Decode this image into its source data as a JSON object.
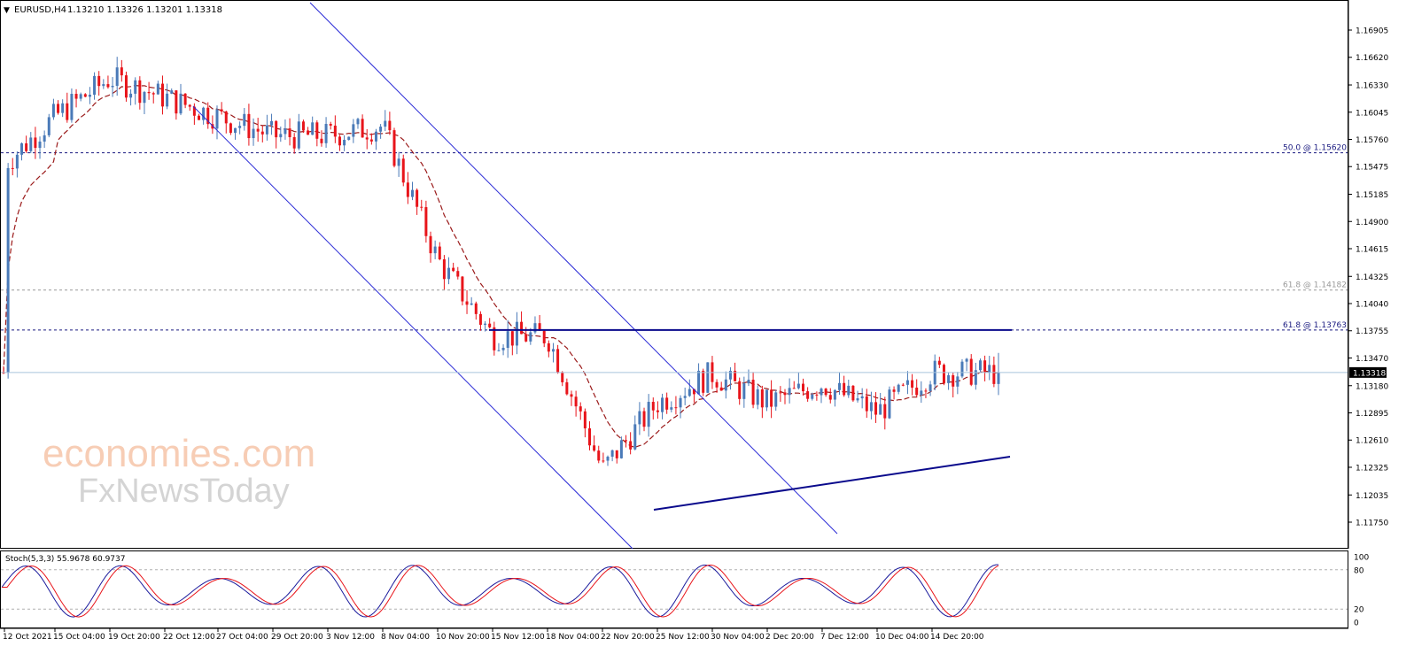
{
  "header": {
    "symbol": "EURUSD,H4",
    "ohlc": "1.13210 1.13326 1.13201 1.13318",
    "triangle_glyph": "▼"
  },
  "watermark": {
    "line1": "economies.com",
    "line2": "FxNewsToday"
  },
  "colors": {
    "bull": "#4a7ab8",
    "bear": "#e8141a",
    "ma": "#9b1b1b",
    "channel": "#2b2bd6",
    "support": "#0a0a8c",
    "fib": "#1a1a80",
    "fib_minor": "#999999",
    "stoch_main": "#1a1a9c",
    "stoch_signal": "#e8141a",
    "price_label_bg": "#000000"
  },
  "price_axis": {
    "ticks": [
      "1.16905",
      "1.16620",
      "1.16330",
      "1.16045",
      "1.15760",
      "1.15475",
      "1.15185",
      "1.14900",
      "1.14615",
      "1.14325",
      "1.14040",
      "1.13755",
      "1.13470",
      "1.13180",
      "1.12895",
      "1.12610",
      "1.12325",
      "1.12035",
      "1.11750"
    ],
    "current_price": "1.13318"
  },
  "time_axis": {
    "labels": [
      "12 Oct 2021",
      "15 Oct 04:00",
      "19 Oct 20:00",
      "22 Oct 12:00",
      "27 Oct 04:00",
      "29 Oct 20:00",
      "3 Nov 12:00",
      "8 Nov 04:00",
      "10 Nov 20:00",
      "15 Nov 12:00",
      "18 Nov 04:00",
      "22 Nov 20:00",
      "25 Nov 12:00",
      "30 Nov 04:00",
      "2 Dec 20:00",
      "7 Dec 12:00",
      "10 Dec 04:00",
      "14 Dec 20:00"
    ]
  },
  "fib_levels": [
    {
      "label": "50.0 @ 1.15620",
      "price": 1.1562,
      "style": "major"
    },
    {
      "label": "61.8 @ 1.14182",
      "price": 1.14182,
      "style": "minor"
    },
    {
      "label": "61.8 @ 1.13763",
      "price": 1.13763,
      "style": "major"
    }
  ],
  "stochastic": {
    "label": "Stoch(5,3,3) 55.9678 60.9737",
    "axis_labels": [
      "100",
      "80",
      "20",
      "0"
    ]
  },
  "chart_data": {
    "type": "candlestick",
    "symbol": "EURUSD",
    "timeframe": "H4",
    "ylim": [
      1.1175,
      1.1705
    ],
    "current_close": 1.13318,
    "close_path": [
      {
        "x": "12 Oct 2021",
        "y": 1.155
      },
      {
        "x": "15 Oct 04:00",
        "y": 1.16
      },
      {
        "x": "19 Oct 20:00",
        "y": 1.164
      },
      {
        "x": "22 Oct 12:00",
        "y": 1.162
      },
      {
        "x": "27 Oct 04:00",
        "y": 1.16
      },
      {
        "x": "29 Oct 20:00",
        "y": 1.158
      },
      {
        "x": "3 Nov 12:00",
        "y": 1.158
      },
      {
        "x": "8 Nov 04:00",
        "y": 1.159
      },
      {
        "x": "10 Nov 20:00",
        "y": 1.145
      },
      {
        "x": "15 Nov 12:00",
        "y": 1.137
      },
      {
        "x": "18 Nov 04:00",
        "y": 1.137
      },
      {
        "x": "22 Nov 20:00",
        "y": 1.123
      },
      {
        "x": "25 Nov 12:00",
        "y": 1.13
      },
      {
        "x": "30 Nov 04:00",
        "y": 1.133
      },
      {
        "x": "2 Dec 20:00",
        "y": 1.13
      },
      {
        "x": "7 Dec 12:00",
        "y": 1.132
      },
      {
        "x": "10 Dec 04:00",
        "y": 1.129
      },
      {
        "x": "14 Dec 20:00",
        "y": 1.1332
      }
    ],
    "horizontal_resistance": 1.13763,
    "support_trendline": [
      {
        "x": "23 Nov",
        "y": 1.119
      },
      {
        "x": "16 Dec",
        "y": 1.1265
      }
    ],
    "channel_upper": [
      {
        "x": "27 Oct",
        "y": 1.1715
      },
      {
        "x": "6 Dec",
        "y": 1.1195
      }
    ],
    "channel_lower": [
      {
        "x": "22 Oct",
        "y": 1.1625
      },
      {
        "x": "23 Nov",
        "y": 1.1175
      }
    ]
  }
}
